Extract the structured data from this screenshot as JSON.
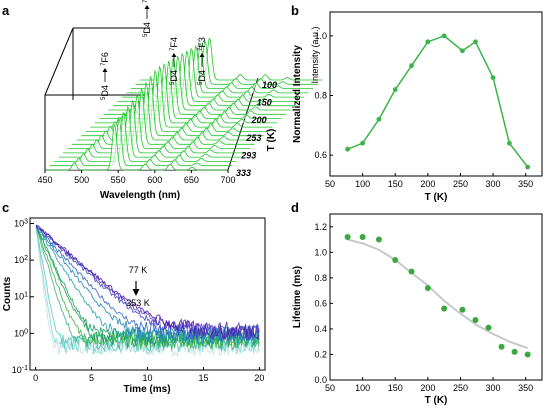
{
  "chart_data": [
    {
      "panel": "a",
      "type": "waterfall",
      "xlabel": "Wavelength (nm)",
      "xticks": [
        450,
        500,
        550,
        600,
        650,
        700
      ],
      "zlabel": "T (K)",
      "zticks": [
        "100",
        "150",
        "200",
        "253",
        "293",
        "333"
      ],
      "series_color": "#22c52b",
      "peaks_nm": [
        490,
        545,
        587,
        621,
        651
      ],
      "peak_heights": [
        0.16,
        1.0,
        0.13,
        0.13,
        0.06
      ],
      "annotations": [
        {
          "upper": "5D4",
          "lower": "7F6"
        },
        {
          "upper": "5D4",
          "lower": "7F5"
        },
        {
          "upper": "5D4",
          "lower": "7F4"
        },
        {
          "upper": "5D4",
          "lower": "7F3"
        }
      ]
    },
    {
      "panel": "b",
      "type": "line",
      "x": [
        77,
        100,
        125,
        150,
        175,
        200,
        225,
        253,
        273,
        300,
        325,
        353
      ],
      "y": [
        0.62,
        0.64,
        0.72,
        0.82,
        0.9,
        0.98,
        1.0,
        0.95,
        0.98,
        0.86,
        0.64,
        0.56
      ],
      "xlabel": "T (K)",
      "ylabel": "Normalized Intensity",
      "ylabel_right": "Intensity (a.u.)",
      "xlim": [
        50,
        375
      ],
      "ylim": [
        0.53,
        1.08
      ],
      "xticks": [
        50,
        100,
        150,
        200,
        250,
        300,
        350
      ],
      "yticks": [
        0.6,
        0.8,
        1.0
      ],
      "color": "#3cb34a"
    },
    {
      "panel": "c",
      "type": "scatter",
      "xlabel": "Time (ms)",
      "ylabel": "Counts",
      "xlim": [
        -0.5,
        20.5
      ],
      "ylim_log10": [
        -1,
        3.15
      ],
      "xticks": [
        0,
        5,
        10,
        15,
        20
      ],
      "yticks": [
        "10-1",
        "100",
        "101",
        "102",
        "103"
      ],
      "annotation_top": "77 K",
      "annotation_bottom": "353 K",
      "decay_lifetimes_ms": [
        1.12,
        1.12,
        1.1,
        0.94,
        0.85,
        0.72,
        0.56,
        0.55,
        0.47,
        0.41,
        0.26,
        0.22,
        0.2
      ],
      "series_colors": [
        "#4a1fa8",
        "#5b34c2",
        "#3f49c8",
        "#2f64c6",
        "#2384b8",
        "#1fa0a8",
        "#1a9a6a",
        "#23a84a",
        "#41b33a",
        "#3db08a",
        "#5cc7c0",
        "#8ad6cf",
        "#b9e7e1"
      ]
    },
    {
      "panel": "d",
      "type": "scatter",
      "x": [
        77,
        100,
        125,
        150,
        175,
        200,
        225,
        253,
        273,
        293,
        313,
        333,
        353
      ],
      "y": [
        1.12,
        1.12,
        1.1,
        0.94,
        0.85,
        0.72,
        0.56,
        0.55,
        0.47,
        0.41,
        0.26,
        0.22,
        0.2
      ],
      "fit_x": [
        77,
        100,
        125,
        150,
        175,
        200,
        225,
        250,
        275,
        300,
        325,
        353
      ],
      "fit_y": [
        1.1,
        1.07,
        1.02,
        0.94,
        0.84,
        0.74,
        0.62,
        0.52,
        0.43,
        0.36,
        0.3,
        0.25
      ],
      "xlabel": "T (K)",
      "ylabel": "Lifetime (ms)",
      "xlim": [
        50,
        375
      ],
      "ylim": [
        0.0,
        1.3
      ],
      "xticks": [
        50,
        100,
        150,
        200,
        250,
        300,
        350
      ],
      "yticks": [
        0.0,
        0.2,
        0.4,
        0.6,
        0.8,
        1.0,
        1.2
      ],
      "marker_color": "#3aa83f",
      "fit_color": "#c8c8c8"
    }
  ],
  "labels": {
    "a": "a",
    "b": "b",
    "c": "c",
    "d": "d"
  }
}
